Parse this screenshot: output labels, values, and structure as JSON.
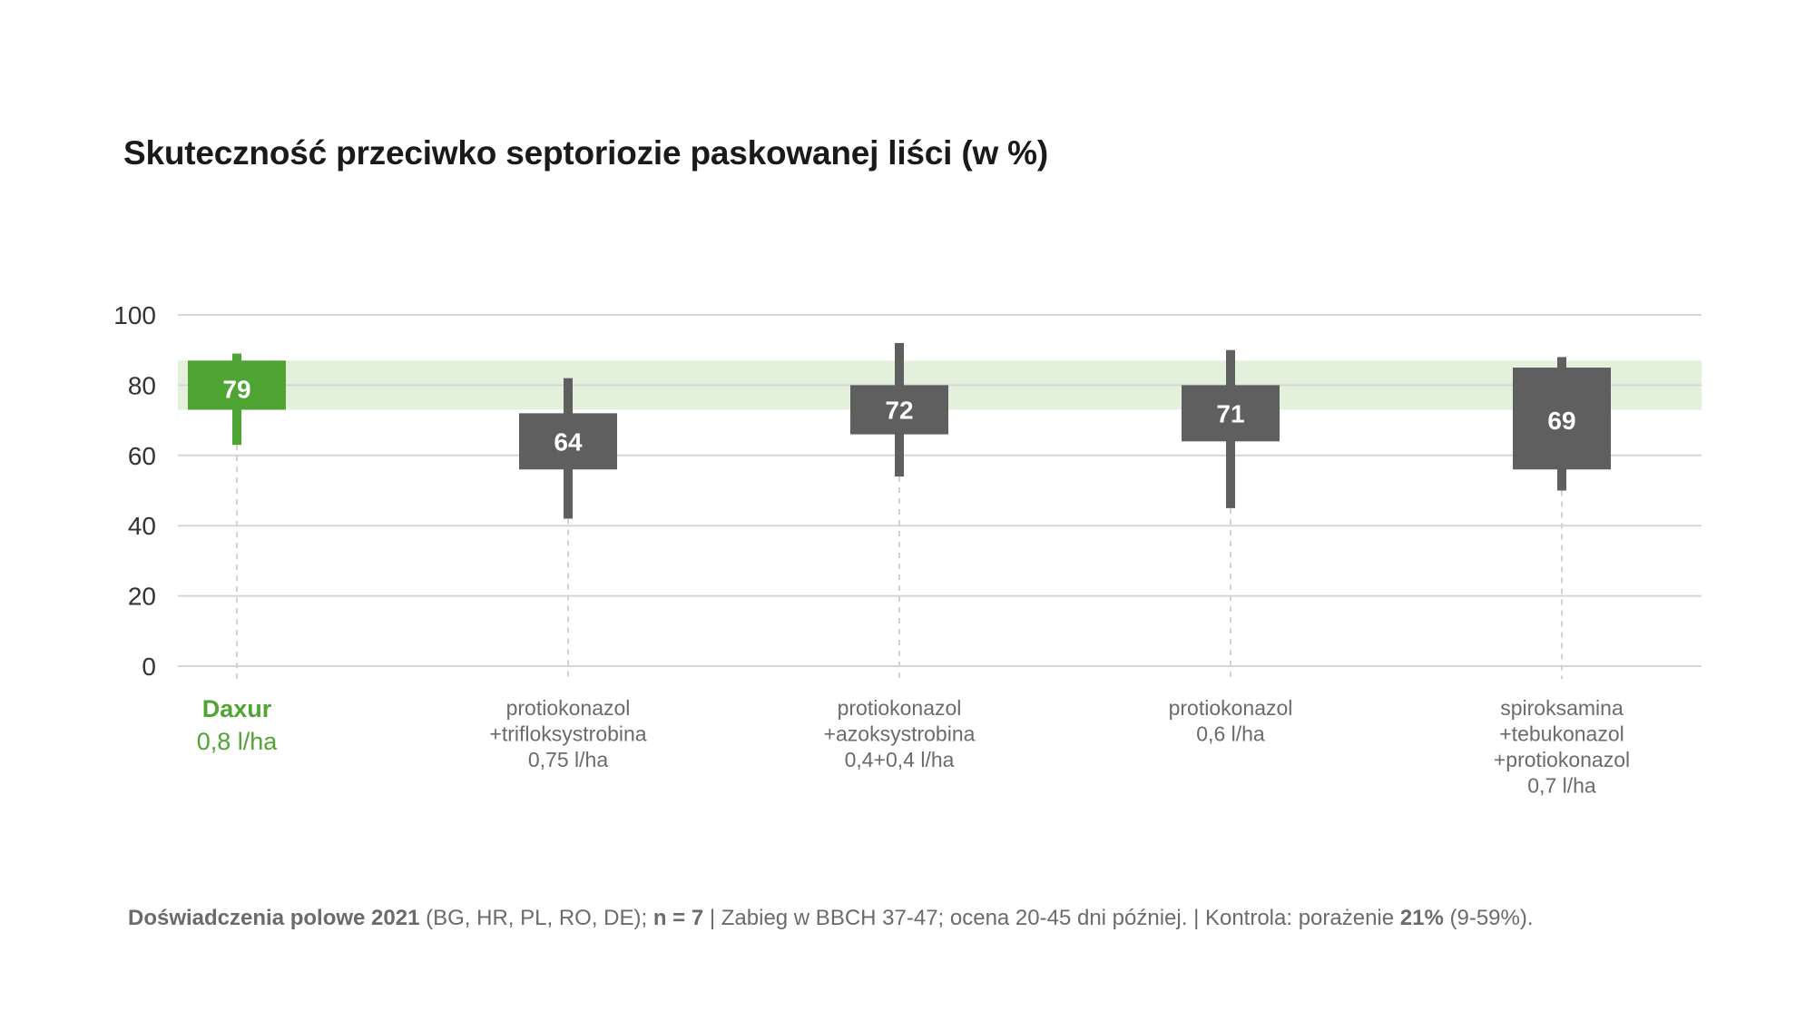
{
  "chart_data": {
    "type": "boxplot",
    "title": "Skuteczność przeciwko septoriozie paskowanej liści (w %)",
    "ylim": [
      0,
      100
    ],
    "yticks": [
      0,
      20,
      40,
      60,
      80,
      100
    ],
    "grid": true,
    "reference_band": {
      "from": 73,
      "to": 87,
      "color": "#e3f1dc"
    },
    "categories": [
      {
        "lines": [
          "Daxur",
          "0,8 l/ha"
        ],
        "highlight": true,
        "min": 63,
        "q1": 73,
        "q3": 87,
        "max": 89,
        "label": "79",
        "label_y": 79,
        "color": "#4ea533"
      },
      {
        "lines": [
          "protiokonazol",
          "+trifloksystrobina",
          "0,75 l/ha"
        ],
        "highlight": false,
        "min": 42,
        "q1": 56,
        "q3": 72,
        "max": 82,
        "label": "64",
        "label_y": 64,
        "color": "#5f5f5f"
      },
      {
        "lines": [
          "protiokonazol",
          "+azoksystrobina",
          "0,4+0,4 l/ha"
        ],
        "highlight": false,
        "min": 54,
        "q1": 66,
        "q3": 80,
        "max": 92,
        "label": "72",
        "label_y": 73,
        "color": "#5f5f5f"
      },
      {
        "lines": [
          "protiokonazol",
          "0,6 l/ha"
        ],
        "highlight": false,
        "min": 45,
        "q1": 64,
        "q3": 80,
        "max": 90,
        "label": "71",
        "label_y": 72,
        "color": "#5f5f5f"
      },
      {
        "lines": [
          "spiroksamina",
          "+tebukonazol",
          "+protiokonazol",
          "0,7 l/ha"
        ],
        "highlight": false,
        "min": 50,
        "q1": 56,
        "q3": 85,
        "max": 88,
        "label": "69",
        "label_y": 70,
        "color": "#5f5f5f"
      }
    ]
  },
  "footnote": {
    "part1_bold": "Doświadczenia polowe 2021",
    "part2": " (BG, HR, PL, RO, DE); ",
    "part3_bold": "n = 7",
    "part4": "  |  Zabieg w BBCH 37-47; ocena 20-45 dni później.  |  Kontrola: porażenie ",
    "part5_bold": "21%",
    "part6": " (9-59%)."
  }
}
